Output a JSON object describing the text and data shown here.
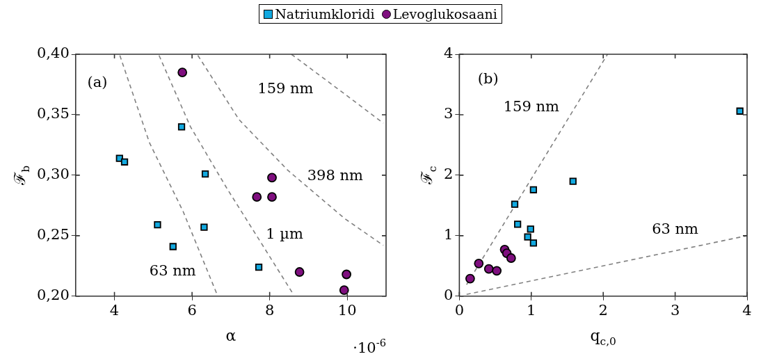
{
  "chart_data": [
    {
      "type": "scatter",
      "xlabel": "α",
      "ylabel": "ℱ$_{b}$",
      "xlim": [
        3,
        11
      ],
      "xticks": [
        4,
        6,
        8,
        10
      ],
      "ylim": [
        0.2,
        0.4
      ],
      "yticks": [
        {
          "value": 0.2,
          "label": "0,20"
        },
        {
          "value": 0.25,
          "label": "0,25"
        },
        {
          "value": 0.3,
          "label": "0,30"
        },
        {
          "value": 0.35,
          "label": "0,35"
        },
        {
          "value": 0.4,
          "label": "0,40"
        }
      ],
      "legend": "top",
      "annotations": [
        "·10$^{-6}$",
        "(a)",
        "159 nm",
        "398 nm",
        "1 µm",
        "63 nm"
      ],
      "series": [
        {
          "name": "Natriumkloridi",
          "type": "scatter",
          "marker": "square",
          "color": "#12a9e0",
          "x": [
            4.13,
            4.26,
            5.73,
            6.34,
            5.11,
            6.31,
            5.51,
            7.72
          ],
          "values": [
            0.314,
            0.311,
            0.34,
            0.301,
            0.259,
            0.257,
            0.241,
            0.224
          ]
        },
        {
          "name": "Levoglukosaani",
          "type": "scatter",
          "marker": "circle",
          "color": "#7f0f7f",
          "x": [
            5.75,
            8.06,
            7.67,
            8.06,
            8.77,
            9.98,
            9.92
          ],
          "values": [
            0.385,
            0.298,
            0.282,
            0.282,
            0.22,
            0.218,
            0.205
          ]
        },
        {
          "type": "line",
          "marker": "none",
          "line_style": "dashed",
          "color": "#808080",
          "x": [
            4.14,
            4.9,
            5.77,
            6.65
          ],
          "values": [
            0.399,
            0.327,
            0.27,
            0.201
          ]
        },
        {
          "type": "line",
          "marker": "none",
          "line_style": "dashed",
          "color": "#808080",
          "x": [
            5.15,
            5.96,
            6.9,
            7.84,
            8.62
          ],
          "values": [
            0.399,
            0.34,
            0.289,
            0.241,
            0.201
          ]
        },
        {
          "type": "line",
          "marker": "none",
          "line_style": "dashed",
          "color": "#808080",
          "x": [
            6.15,
            7.21,
            8.47,
            9.94,
            10.93
          ],
          "values": [
            0.399,
            0.346,
            0.304,
            0.264,
            0.242
          ]
        },
        {
          "type": "line",
          "marker": "none",
          "line_style": "dashed",
          "color": "#808080",
          "x": [
            8.56,
            9.94,
            10.93
          ],
          "values": [
            0.4,
            0.367,
            0.343
          ]
        }
      ]
    },
    {
      "type": "scatter",
      "xlabel": "q$_{c,0}$",
      "ylabel": "ℱ$_{c}$",
      "xlim": [
        0,
        4
      ],
      "xticks": [
        0,
        1,
        2,
        3,
        4
      ],
      "ylim": [
        0,
        4
      ],
      "yticks": [
        0,
        1,
        2,
        3,
        4
      ],
      "annotations": [
        "(b)",
        "159 nm",
        "63 nm"
      ],
      "series": [
        {
          "type": "scatter",
          "marker": "square",
          "color": "#12a9e0",
          "x": [
            1.58,
            1.03,
            0.77,
            0.81,
            0.99,
            0.95,
            1.03,
            3.9
          ],
          "values": [
            1.9,
            1.76,
            1.52,
            1.19,
            1.11,
            0.98,
            0.88,
            3.06
          ]
        },
        {
          "type": "scatter",
          "marker": "circle",
          "color": "#7f0f7f",
          "x": [
            0.15,
            0.27,
            0.41,
            0.52,
            0.63,
            0.66,
            0.72
          ],
          "values": [
            0.29,
            0.54,
            0.45,
            0.42,
            0.77,
            0.71,
            0.63
          ]
        },
        {
          "type": "line",
          "marker": "none",
          "line_style": "dashed",
          "color": "#808080",
          "x": [
            0.1,
            2.06
          ],
          "values": [
            0.19,
            4
          ]
        },
        {
          "type": "line",
          "marker": "none",
          "line_style": "dashed",
          "color": "#808080",
          "x": [
            0.1,
            4
          ],
          "values": [
            0.03,
            1.0
          ]
        }
      ]
    }
  ]
}
